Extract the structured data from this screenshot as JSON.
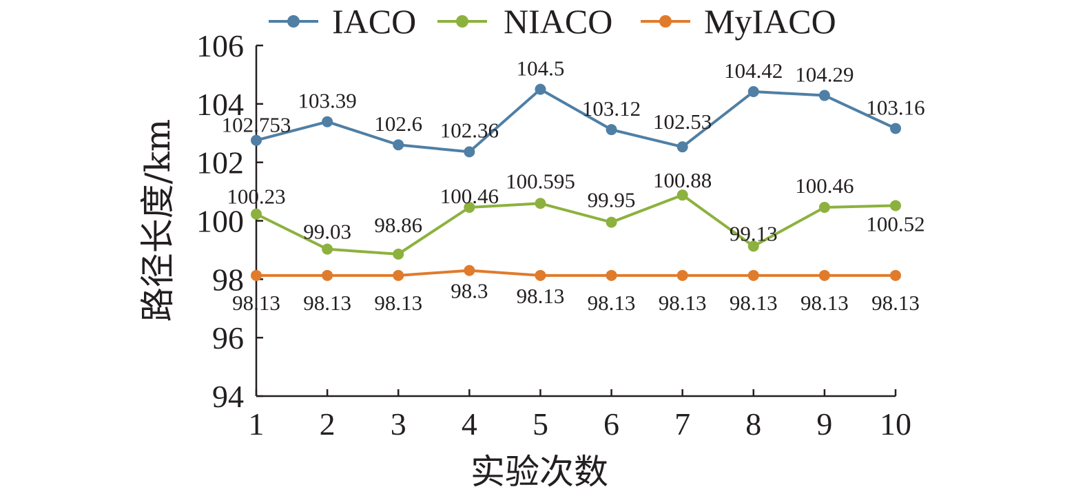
{
  "chart_data": {
    "type": "line",
    "title": "",
    "xlabel": "实验次数",
    "ylabel": "路径长度/km",
    "x": [
      1,
      2,
      3,
      4,
      5,
      6,
      7,
      8,
      9,
      10
    ],
    "x_tick_labels": [
      "1",
      "2",
      "3",
      "4",
      "5",
      "6",
      "7",
      "8",
      "9",
      "10"
    ],
    "y_ticks": [
      94,
      96,
      98,
      100,
      102,
      104,
      106
    ],
    "y_tick_labels": [
      "94",
      "96",
      "98",
      "100",
      "102",
      "104",
      "106"
    ],
    "ylim": [
      94,
      106
    ],
    "grid": false,
    "legend_position": "top",
    "series": [
      {
        "name": "IACO",
        "color": "#4f7fa5",
        "values": [
          102.753,
          103.39,
          102.6,
          102.36,
          104.5,
          103.12,
          102.53,
          104.42,
          104.29,
          103.16
        ],
        "labels": [
          "102.753",
          "103.39",
          "102.6",
          "102.36",
          "104.5",
          "103.12",
          "102.53",
          "104.42",
          "104.29",
          "103.16"
        ]
      },
      {
        "name": "NIACO",
        "color": "#8db13e",
        "values": [
          100.23,
          99.03,
          98.86,
          100.46,
          100.595,
          99.95,
          100.88,
          99.13,
          100.46,
          100.52
        ],
        "labels": [
          "100.23",
          "99.03",
          "98.86",
          "100.46",
          "100.595",
          "99.95",
          "100.88",
          "99.13",
          "100.46",
          "100.52"
        ]
      },
      {
        "name": "MyIACO",
        "color": "#e07b2c",
        "values": [
          98.13,
          98.13,
          98.13,
          98.3,
          98.13,
          98.13,
          98.13,
          98.13,
          98.13,
          98.13
        ],
        "labels": [
          "98.13",
          "98.13",
          "98.13",
          "98.3",
          "98.13",
          "98.13",
          "98.13",
          "98.13",
          "98.13",
          "98.13"
        ]
      }
    ]
  }
}
